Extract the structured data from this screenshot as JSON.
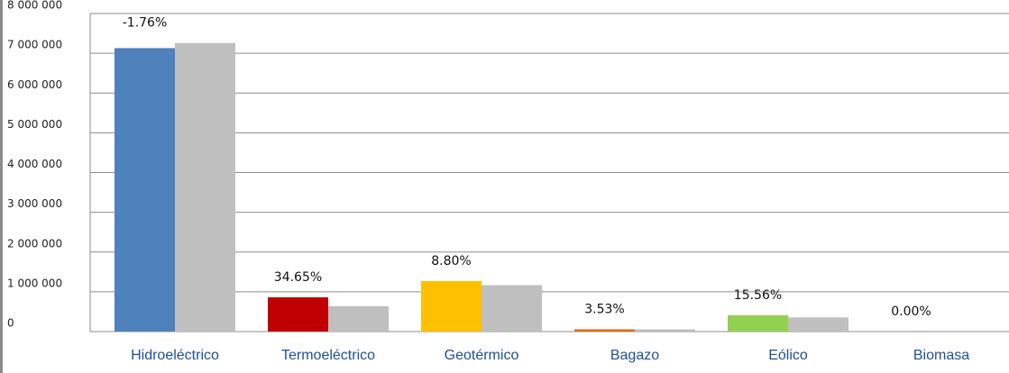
{
  "chart_data": {
    "type": "bar",
    "categories": [
      "Hidroeléctrico",
      "Termoeléctrico",
      "Geotérmico",
      "Bagazo",
      "Eólico",
      "Biomasa"
    ],
    "series": [
      {
        "colors": [
          "#4f81bd",
          "#c00000",
          "#ffc000",
          "#e46c0a",
          "#92d050",
          "#7f7f7f"
        ],
        "values": [
          7130000,
          862000,
          1270000,
          57000,
          410000,
          0
        ]
      },
      {
        "color": "#bfbfbf",
        "values": [
          7258000,
          640000,
          1167000,
          55000,
          355000,
          0
        ]
      }
    ],
    "annotations": [
      "-1.76%",
      "34.65%",
      "8.80%",
      "3.53%",
      "15.56%",
      "0.00%"
    ],
    "ylim": [
      0,
      8000000
    ],
    "yticks": [
      0,
      {
        "value": 1000000,
        "label": "1 000 000"
      },
      {
        "value": 2000000,
        "label": "2 000 000"
      },
      {
        "value": 3000000,
        "label": "3 000 000"
      },
      {
        "value": 4000000,
        "label": "4 000 000"
      },
      {
        "value": 5000000,
        "label": "5 000 000"
      },
      {
        "value": 6000000,
        "label": "6 000 000"
      },
      {
        "value": 7000000,
        "label": "7 000 000"
      },
      {
        "value": 8000000,
        "label": "8 000 000"
      }
    ],
    "grid": true
  }
}
